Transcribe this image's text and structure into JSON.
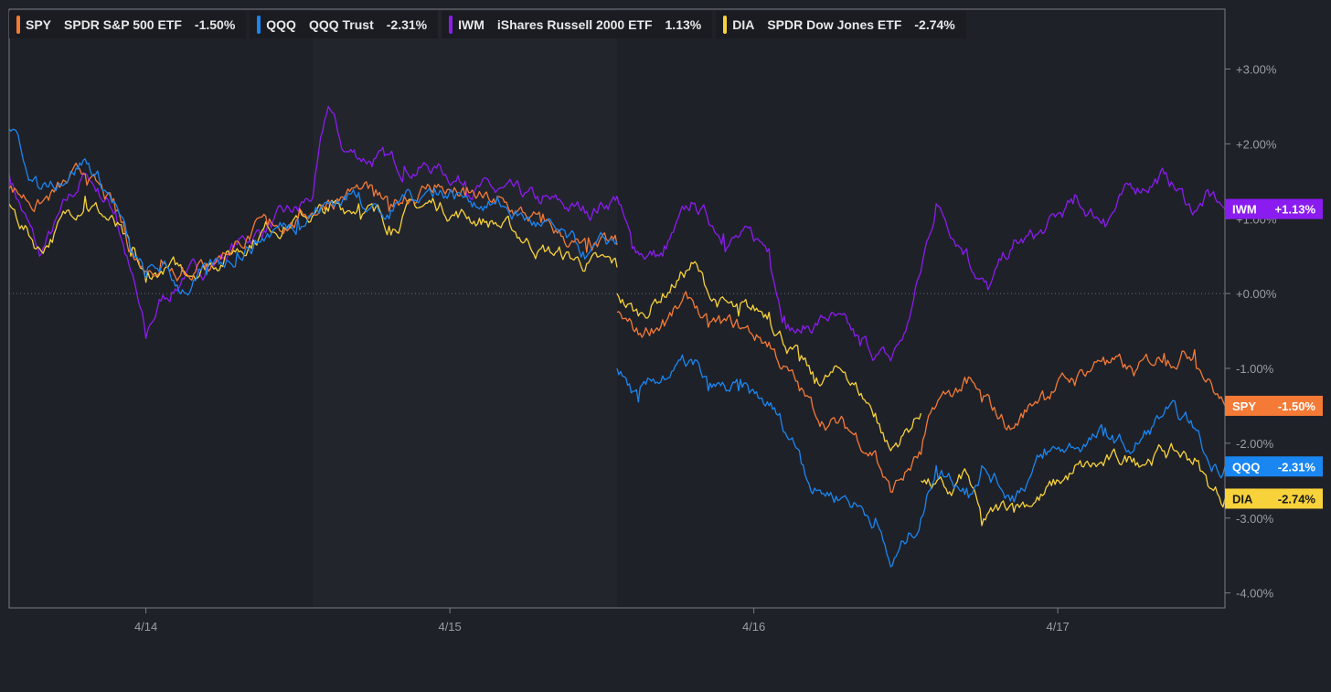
{
  "legend": [
    {
      "symbol": "SPY",
      "name": "SPDR S&P 500 ETF",
      "change": "-1.50%",
      "color": "#f47a36"
    },
    {
      "symbol": "QQQ",
      "name": "QQQ Trust",
      "change": "-2.31%",
      "color": "#1a86f2"
    },
    {
      "symbol": "IWM",
      "name": "iShares Russell 2000 ETF",
      "change": "1.13%",
      "color": "#8a1cf0"
    },
    {
      "symbol": "DIA",
      "name": "SPDR Dow Jones ETF",
      "change": "-2.74%",
      "color": "#f7d23a"
    }
  ],
  "chart_data": {
    "type": "line",
    "x_axis": {
      "ticks": [
        "4/14",
        "4/15",
        "4/16",
        "4/17"
      ],
      "range": [
        -0.45,
        3.55
      ]
    },
    "y_axis": {
      "ticks": [
        "+3.00%",
        "+2.00%",
        "+1.00%",
        "+0.00%",
        "-1.00%",
        "-2.00%",
        "-3.00%",
        "-4.00%"
      ],
      "tick_values": [
        3,
        2,
        1,
        0,
        -1,
        -2,
        -3,
        -4
      ],
      "range": [
        -4.2,
        3.8
      ],
      "position": "right",
      "zero_line": "dotted"
    },
    "grid": false,
    "shaded_regions": [
      {
        "from": 0.55,
        "to": 1.55,
        "color": "#23252d"
      }
    ],
    "series": [
      {
        "name": "SPY",
        "color": "#f47a36",
        "end_label": "SPY",
        "end_value_label": "-1.50%",
        "points": [
          [
            -0.45,
            1.4
          ],
          [
            -0.35,
            1.2
          ],
          [
            -0.2,
            1.6
          ],
          [
            -0.1,
            1.1
          ],
          [
            -0.05,
            0.6
          ],
          [
            0,
            0.3
          ],
          [
            0.05,
            0.45
          ],
          [
            0.12,
            0.35
          ],
          [
            0.2,
            0.4
          ],
          [
            0.3,
            0.7
          ],
          [
            0.4,
            0.9
          ],
          [
            0.5,
            1.0
          ],
          [
            0.6,
            1.25
          ],
          [
            0.7,
            1.4
          ],
          [
            0.75,
            1.3
          ],
          [
            0.8,
            1.1
          ],
          [
            0.85,
            1.3
          ],
          [
            0.95,
            1.45
          ],
          [
            1.05,
            1.3
          ],
          [
            1.15,
            1.2
          ],
          [
            1.3,
            0.95
          ],
          [
            1.45,
            0.55
          ],
          [
            1.55,
            0.65
          ],
          [
            1.55,
            -0.25
          ],
          [
            1.62,
            -0.55
          ],
          [
            1.7,
            -0.35
          ],
          [
            1.8,
            -0.1
          ],
          [
            1.85,
            -0.45
          ],
          [
            1.95,
            -0.45
          ],
          [
            2.05,
            -0.65
          ],
          [
            2.15,
            -1.3
          ],
          [
            2.2,
            -1.6
          ],
          [
            2.3,
            -1.8
          ],
          [
            2.4,
            -2.1
          ],
          [
            2.45,
            -2.65
          ],
          [
            2.55,
            -2.15
          ],
          [
            2.6,
            -1.5
          ],
          [
            2.7,
            -1.2
          ],
          [
            2.75,
            -1.45
          ],
          [
            2.85,
            -1.8
          ],
          [
            2.95,
            -1.3
          ],
          [
            3.05,
            -1.15
          ],
          [
            3.15,
            -0.85
          ],
          [
            3.25,
            -1.1
          ],
          [
            3.35,
            -0.8
          ],
          [
            3.45,
            -0.75
          ],
          [
            3.5,
            -1.15
          ],
          [
            3.55,
            -1.5
          ]
        ]
      },
      {
        "name": "QQQ",
        "color": "#1a86f2",
        "end_label": "QQQ",
        "end_value_label": "-2.31%",
        "points": [
          [
            -0.45,
            2.2
          ],
          [
            -0.35,
            1.4
          ],
          [
            -0.2,
            1.8
          ],
          [
            -0.1,
            1.2
          ],
          [
            -0.05,
            0.55
          ],
          [
            0,
            0.2
          ],
          [
            0.05,
            0.35
          ],
          [
            0.12,
            0.05
          ],
          [
            0.2,
            0.25
          ],
          [
            0.3,
            0.55
          ],
          [
            0.4,
            0.8
          ],
          [
            0.5,
            1.0
          ],
          [
            0.6,
            1.2
          ],
          [
            0.7,
            1.35
          ],
          [
            0.75,
            1.2
          ],
          [
            0.8,
            1.0
          ],
          [
            0.85,
            1.3
          ],
          [
            0.95,
            1.4
          ],
          [
            1.05,
            1.3
          ],
          [
            1.15,
            1.2
          ],
          [
            1.3,
            0.9
          ],
          [
            1.45,
            0.5
          ],
          [
            1.55,
            0.7
          ],
          [
            1.55,
            -1.0
          ],
          [
            1.62,
            -1.45
          ],
          [
            1.7,
            -1.1
          ],
          [
            1.8,
            -0.95
          ],
          [
            1.85,
            -1.3
          ],
          [
            1.95,
            -1.3
          ],
          [
            2.05,
            -1.5
          ],
          [
            2.15,
            -2.1
          ],
          [
            2.2,
            -2.6
          ],
          [
            2.3,
            -2.7
          ],
          [
            2.4,
            -3.0
          ],
          [
            2.45,
            -3.65
          ],
          [
            2.55,
            -3.0
          ],
          [
            2.6,
            -2.3
          ],
          [
            2.7,
            -2.6
          ],
          [
            2.75,
            -2.3
          ],
          [
            2.85,
            -2.7
          ],
          [
            2.95,
            -2.2
          ],
          [
            3.05,
            -2.05
          ],
          [
            3.15,
            -1.9
          ],
          [
            3.25,
            -2.1
          ],
          [
            3.35,
            -1.6
          ],
          [
            3.45,
            -1.8
          ],
          [
            3.5,
            -2.3
          ],
          [
            3.55,
            -2.31
          ]
        ]
      },
      {
        "name": "IWM",
        "color": "#8a1cf0",
        "end_label": "IWM",
        "end_value_label": "+1.13%",
        "points": [
          [
            -0.45,
            1.6
          ],
          [
            -0.35,
            0.5
          ],
          [
            -0.2,
            1.6
          ],
          [
            -0.1,
            1.1
          ],
          [
            -0.05,
            0.3
          ],
          [
            0,
            -0.6
          ],
          [
            0.05,
            -0.1
          ],
          [
            0.12,
            0.2
          ],
          [
            0.2,
            0.35
          ],
          [
            0.3,
            0.65
          ],
          [
            0.4,
            0.9
          ],
          [
            0.5,
            1.1
          ],
          [
            0.55,
            1.3
          ],
          [
            0.6,
            2.5
          ],
          [
            0.65,
            1.9
          ],
          [
            0.75,
            1.8
          ],
          [
            0.85,
            1.7
          ],
          [
            0.95,
            1.7
          ],
          [
            1.05,
            1.5
          ],
          [
            1.15,
            1.35
          ],
          [
            1.3,
            1.2
          ],
          [
            1.45,
            1.1
          ],
          [
            1.55,
            1.3
          ],
          [
            1.6,
            0.6
          ],
          [
            1.7,
            0.5
          ],
          [
            1.8,
            1.2
          ],
          [
            1.9,
            0.8
          ],
          [
            2.0,
            0.7
          ],
          [
            2.05,
            0.6
          ],
          [
            2.1,
            -0.3
          ],
          [
            2.15,
            -0.5
          ],
          [
            2.25,
            -0.3
          ],
          [
            2.35,
            -0.7
          ],
          [
            2.45,
            -0.9
          ],
          [
            2.5,
            -0.5
          ],
          [
            2.55,
            0.3
          ],
          [
            2.6,
            1.2
          ],
          [
            2.7,
            0.6
          ],
          [
            2.77,
            0.05
          ],
          [
            2.85,
            0.6
          ],
          [
            2.95,
            0.8
          ],
          [
            3.05,
            1.2
          ],
          [
            3.15,
            1.0
          ],
          [
            3.25,
            1.4
          ],
          [
            3.35,
            1.6
          ],
          [
            3.45,
            1.1
          ],
          [
            3.5,
            1.3
          ],
          [
            3.55,
            1.13
          ]
        ]
      },
      {
        "name": "DIA",
        "color": "#f7d23a",
        "end_label": "DIA",
        "end_value_label": "-2.74%",
        "points": [
          [
            -0.45,
            1.2
          ],
          [
            -0.35,
            0.6
          ],
          [
            -0.2,
            1.3
          ],
          [
            -0.1,
            0.9
          ],
          [
            -0.05,
            0.5
          ],
          [
            0,
            0.15
          ],
          [
            0.05,
            0.3
          ],
          [
            0.12,
            0.3
          ],
          [
            0.2,
            0.4
          ],
          [
            0.3,
            0.6
          ],
          [
            0.4,
            0.9
          ],
          [
            0.5,
            1.0
          ],
          [
            0.6,
            1.1
          ],
          [
            0.7,
            1.2
          ],
          [
            0.75,
            1.1
          ],
          [
            0.8,
            0.9
          ],
          [
            0.85,
            1.1
          ],
          [
            0.95,
            1.2
          ],
          [
            1.05,
            1.05
          ],
          [
            1.15,
            0.95
          ],
          [
            1.3,
            0.6
          ],
          [
            1.45,
            0.4
          ],
          [
            1.55,
            0.35
          ],
          [
            1.55,
            0.0
          ],
          [
            1.62,
            -0.3
          ],
          [
            1.7,
            0.0
          ],
          [
            1.8,
            0.4
          ],
          [
            1.85,
            0.0
          ],
          [
            1.95,
            -0.3
          ],
          [
            2.05,
            -0.25
          ],
          [
            2.15,
            -0.9
          ],
          [
            2.2,
            -1.2
          ],
          [
            2.3,
            -1.05
          ],
          [
            2.4,
            -1.6
          ],
          [
            2.45,
            -2.1
          ],
          [
            2.55,
            -1.6
          ],
          [
            2.55,
            -2.5
          ],
          [
            2.65,
            -2.7
          ],
          [
            2.7,
            -2.4
          ],
          [
            2.75,
            -3.1
          ],
          [
            2.85,
            -2.8
          ],
          [
            2.95,
            -2.7
          ],
          [
            3.05,
            -2.4
          ],
          [
            3.15,
            -2.3
          ],
          [
            3.25,
            -2.2
          ],
          [
            3.35,
            -2.1
          ],
          [
            3.45,
            -2.2
          ],
          [
            3.5,
            -2.6
          ],
          [
            3.55,
            -2.74
          ]
        ]
      }
    ]
  }
}
